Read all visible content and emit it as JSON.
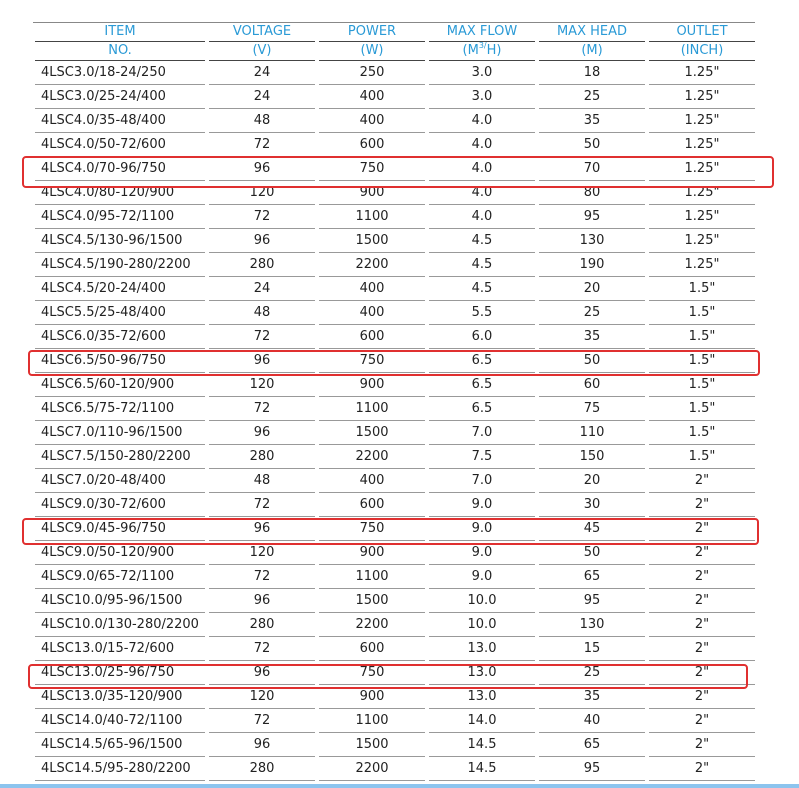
{
  "headers": {
    "row1": [
      "ITEM",
      "VOLTAGE",
      "POWER",
      "MAX FLOW",
      "MAX HEAD",
      "OUTLET"
    ],
    "row2": [
      "NO.",
      "(V)",
      "(W)",
      "(M",
      "3/",
      "H)",
      "(M)",
      "(INCH)"
    ]
  },
  "highlight_color": "#e03030",
  "header_color": "#2a9ad6",
  "rows": [
    [
      "4LSC3.0/18-24/250",
      "24",
      "250",
      "3.0",
      "18",
      "1.25\""
    ],
    [
      "4LSC3.0/25-24/400",
      "24",
      "400",
      "3.0",
      "25",
      "1.25\""
    ],
    [
      "4LSC4.0/35-48/400",
      "48",
      "400",
      "4.0",
      "35",
      "1.25\""
    ],
    [
      "4LSC4.0/50-72/600",
      "72",
      "600",
      "4.0",
      "50",
      "1.25\""
    ],
    [
      "4LSC4.0/70-96/750",
      "96",
      "750",
      "4.0",
      "70",
      "1.25\""
    ],
    [
      "4LSC4.0/80-120/900",
      "120",
      "900",
      "4.0",
      "80",
      "1.25\""
    ],
    [
      "4LSC4.0/95-72/1100",
      "72",
      "1100",
      "4.0",
      "95",
      "1.25\""
    ],
    [
      "4LSC4.5/130-96/1500",
      "96",
      "1500",
      "4.5",
      "130",
      "1.25\""
    ],
    [
      "4LSC4.5/190-280/2200",
      "280",
      "2200",
      "4.5",
      "190",
      "1.25\""
    ],
    [
      "4LSC4.5/20-24/400",
      "24",
      "400",
      "4.5",
      "20",
      "1.5\""
    ],
    [
      "4LSC5.5/25-48/400",
      "48",
      "400",
      "5.5",
      "25",
      "1.5\""
    ],
    [
      "4LSC6.0/35-72/600",
      "72",
      "600",
      "6.0",
      "35",
      "1.5\""
    ],
    [
      "4LSC6.5/50-96/750",
      "96",
      "750",
      "6.5",
      "50",
      "1.5\""
    ],
    [
      "4LSC6.5/60-120/900",
      "120",
      "900",
      "6.5",
      "60",
      "1.5\""
    ],
    [
      "4LSC6.5/75-72/1100",
      "72",
      "1100",
      "6.5",
      "75",
      "1.5\""
    ],
    [
      "4LSC7.0/110-96/1500",
      "96",
      "1500",
      "7.0",
      "110",
      "1.5\""
    ],
    [
      "4LSC7.5/150-280/2200",
      "280",
      "2200",
      "7.5",
      "150",
      "1.5\""
    ],
    [
      "4LSC7.0/20-48/400",
      "48",
      "400",
      "7.0",
      "20",
      "2\""
    ],
    [
      "4LSC9.0/30-72/600",
      "72",
      "600",
      "9.0",
      "30",
      "2\""
    ],
    [
      "4LSC9.0/45-96/750",
      "96",
      "750",
      "9.0",
      "45",
      "2\""
    ],
    [
      "4LSC9.0/50-120/900",
      "120",
      "900",
      "9.0",
      "50",
      "2\""
    ],
    [
      "4LSC9.0/65-72/1100",
      "72",
      "1100",
      "9.0",
      "65",
      "2\""
    ],
    [
      "4LSC10.0/95-96/1500",
      "96",
      "1500",
      "10.0",
      "95",
      "2\""
    ],
    [
      "4LSC10.0/130-280/2200",
      "280",
      "2200",
      "10.0",
      "130",
      "2\""
    ],
    [
      "4LSC13.0/15-72/600",
      "72",
      "600",
      "13.0",
      "15",
      "2\""
    ],
    [
      "4LSC13.0/25-96/750",
      "96",
      "750",
      "13.0",
      "25",
      "2\""
    ],
    [
      "4LSC13.0/35-120/900",
      "120",
      "900",
      "13.0",
      "35",
      "2\""
    ],
    [
      "4LSC14.0/40-72/1100",
      "72",
      "1100",
      "14.0",
      "40",
      "2\""
    ],
    [
      "4LSC14.5/65-96/1500",
      "96",
      "1500",
      "14.5",
      "65",
      "2\""
    ],
    [
      "4LSC14.5/95-280/2200",
      "280",
      "2200",
      "14.5",
      "95",
      "2\""
    ]
  ],
  "highlighted_rows": [
    4,
    12,
    19,
    25
  ]
}
